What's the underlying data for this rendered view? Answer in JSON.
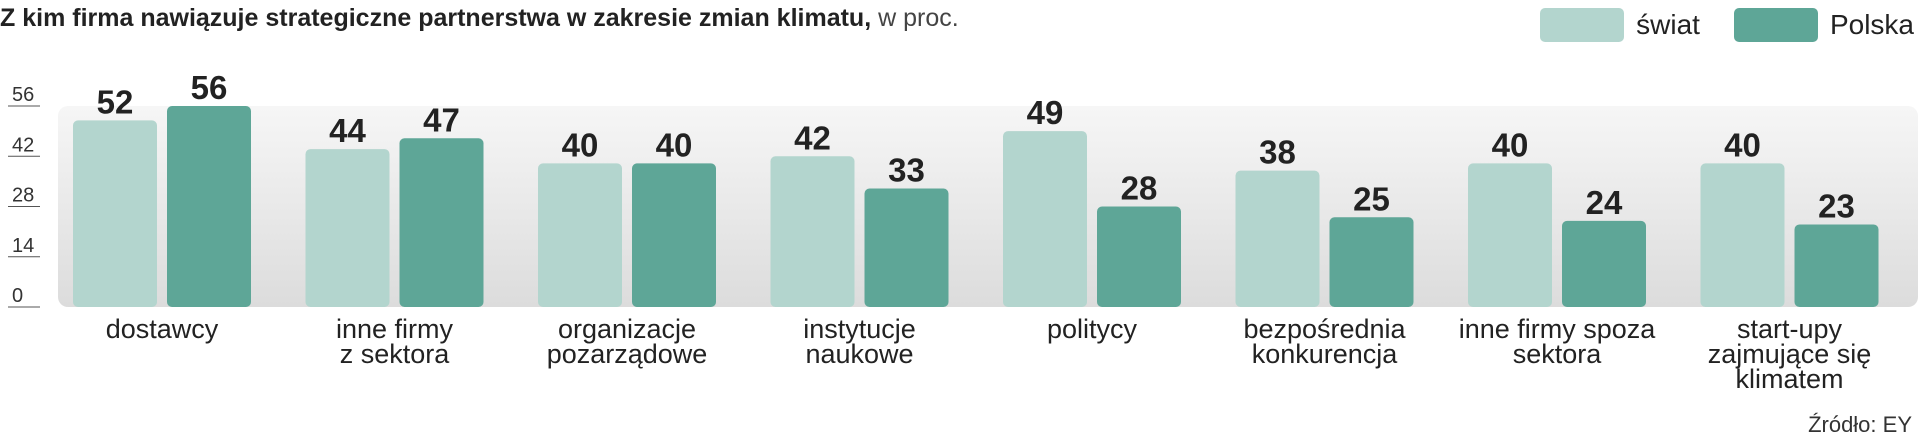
{
  "chart_data": {
    "type": "bar",
    "title": "Z kim firma nawiązuje strategiczne partnerstwa w zakresie zmian klimatu,",
    "unit_note": "w proc.",
    "categories": [
      [
        "dostawcy"
      ],
      [
        "inne firmy",
        "z sektora"
      ],
      [
        "organizacje",
        "pozarządowe"
      ],
      [
        "instytucje",
        "naukowe"
      ],
      [
        "politycy"
      ],
      [
        "bezpośrednia",
        "konkurencja"
      ],
      [
        "inne firmy spoza",
        "sektora"
      ],
      [
        "start-upy",
        "zajmujące się",
        "klimatem"
      ]
    ],
    "series": [
      {
        "name": "świat",
        "color": "#b3d5ce",
        "values": [
          52,
          44,
          40,
          42,
          49,
          38,
          40,
          40
        ]
      },
      {
        "name": "Polska",
        "color": "#5ea697",
        "values": [
          56,
          47,
          40,
          33,
          28,
          25,
          24,
          23
        ]
      }
    ],
    "yticks": [
      0,
      14,
      28,
      42,
      56
    ],
    "ylim": [
      0,
      56
    ],
    "grid": false,
    "legend_position": "top-right",
    "source": "Źródło: EY"
  }
}
